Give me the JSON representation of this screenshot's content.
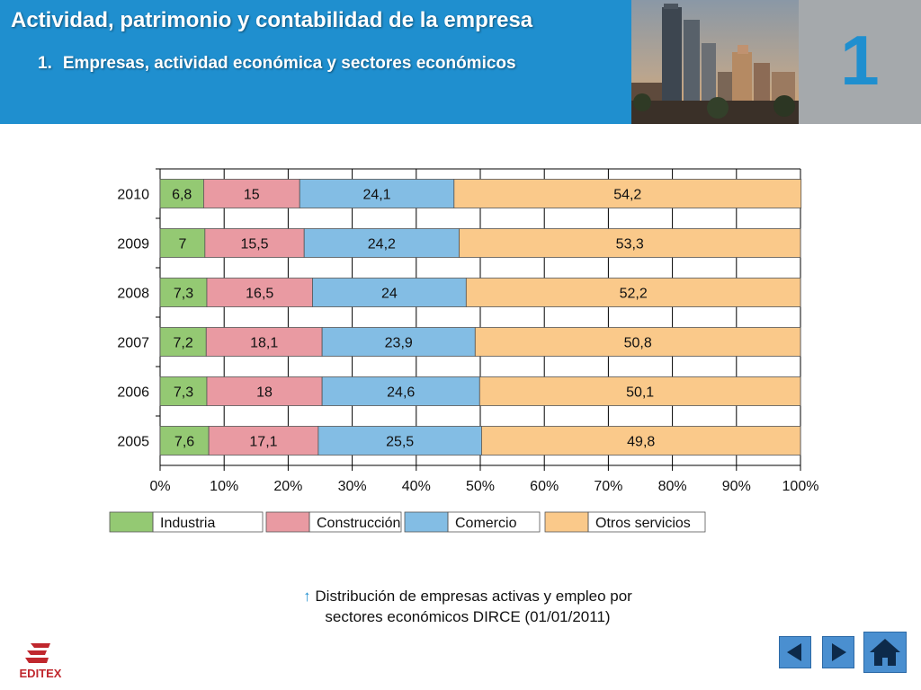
{
  "header": {
    "title": "Actividad, patrimonio y contabilidad de la empresa",
    "subtitle_number": "1.",
    "subtitle": "Empresas, actividad económica y sectores económicos",
    "unit_number": "1",
    "background_color": "#1f8fcf",
    "panel_color": "#a5a9ac"
  },
  "chart_data": {
    "type": "bar",
    "orientation": "horizontal",
    "stacked": true,
    "categories": [
      "2010",
      "2009",
      "2008",
      "2007",
      "2006",
      "2005"
    ],
    "series": [
      {
        "name": "Industria",
        "color": "#94c973",
        "values": [
          6.8,
          7,
          7.3,
          7.2,
          7.3,
          7.6
        ]
      },
      {
        "name": "Construcción",
        "color": "#e99aa2",
        "values": [
          15,
          15.5,
          16.5,
          18.1,
          18,
          17.1
        ]
      },
      {
        "name": "Comercio",
        "color": "#83bde4",
        "values": [
          24.1,
          24.2,
          24,
          23.9,
          24.6,
          25.5
        ]
      },
      {
        "name": "Otros servicios",
        "color": "#fac98a",
        "values": [
          54.2,
          53.3,
          52.2,
          50.8,
          50.1,
          49.8
        ]
      }
    ],
    "x_ticks": [
      "0%",
      "10%",
      "20%",
      "30%",
      "40%",
      "50%",
      "60%",
      "70%",
      "80%",
      "90%",
      "100%"
    ],
    "xlim": [
      0,
      100
    ],
    "grid": true,
    "legend_position": "bottom"
  },
  "caption": {
    "arrow": "↑",
    "line1": "Distribución de empresas activas y empleo por",
    "line2": "sectores económicos DIRCE (01/01/2011)"
  },
  "logo": {
    "text": "EDITEX",
    "color": "#c0272d"
  },
  "nav": {
    "previous_icon": "triangle-left-icon",
    "next_icon": "triangle-right-icon",
    "home_icon": "house-icon",
    "color": "#4a8fd0"
  }
}
